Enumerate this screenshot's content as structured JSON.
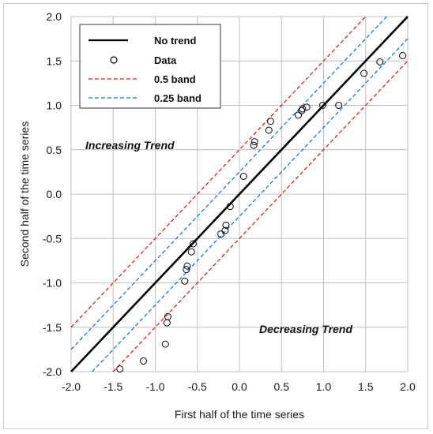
{
  "chart_data": {
    "type": "scatter",
    "xlabel": "First half of the time series",
    "ylabel": "Second half of the time series",
    "xlim": [
      -2.0,
      2.0
    ],
    "ylim": [
      -2.0,
      2.0
    ],
    "xticks": [
      "-2.0",
      "-1.5",
      "-1.0",
      "-0.5",
      "0.0",
      "0.5",
      "1.0",
      "1.5",
      "2.0"
    ],
    "yticks": [
      "2.0",
      "1.5",
      "1.0",
      "0.5",
      "0.0",
      "-0.5",
      "-1.0",
      "-1.5",
      "-2.0"
    ],
    "grid": true,
    "legend_position": "top-left",
    "legend": [
      {
        "label": "No trend",
        "style": "solid-line",
        "color": "#000000"
      },
      {
        "label": "Data",
        "style": "open-circle",
        "color": "#000000"
      },
      {
        "label": "0.5 band",
        "style": "dashed-line",
        "color": "#e0201c"
      },
      {
        "label": "0.25 band",
        "style": "dashed-line",
        "color": "#1f7bc1"
      }
    ],
    "annotations": [
      {
        "text": "Increasing Trend",
        "x": -1.27,
        "y": 0.5
      },
      {
        "text": "Decreasing Trend",
        "x": 0.53,
        "y": -1.57
      }
    ],
    "lines": [
      {
        "name": "No trend",
        "slope": 1,
        "offset": 0,
        "color": "#000000",
        "dashed": false
      },
      {
        "name": "0.5 band",
        "slope": 1,
        "offset": 0.5,
        "color": "#e0201c",
        "dashed": true
      },
      {
        "name": "0.5 band",
        "slope": 1,
        "offset": -0.5,
        "color": "#e0201c",
        "dashed": true
      },
      {
        "name": "0.25 band",
        "slope": 1,
        "offset": 0.25,
        "color": "#1f7bc1",
        "dashed": true
      },
      {
        "name": "0.25 band",
        "slope": 1,
        "offset": -0.25,
        "color": "#1f7bc1",
        "dashed": true
      }
    ],
    "series": [
      {
        "name": "Data",
        "points": [
          [
            -1.42,
            -1.97
          ],
          [
            -1.14,
            -1.88
          ],
          [
            -0.88,
            -1.69
          ],
          [
            -0.86,
            -1.45
          ],
          [
            -0.85,
            -1.38
          ],
          [
            -0.65,
            -0.98
          ],
          [
            -0.63,
            -0.85
          ],
          [
            -0.62,
            -0.81
          ],
          [
            -0.57,
            -0.65
          ],
          [
            -0.55,
            -0.56
          ],
          [
            -0.22,
            -0.45
          ],
          [
            -0.17,
            -0.41
          ],
          [
            -0.16,
            -0.35
          ],
          [
            -0.11,
            -0.14
          ],
          [
            0.05,
            0.2
          ],
          [
            0.17,
            0.55
          ],
          [
            0.18,
            0.59
          ],
          [
            0.35,
            0.72
          ],
          [
            0.37,
            0.82
          ],
          [
            0.7,
            0.89
          ],
          [
            0.74,
            0.94
          ],
          [
            0.75,
            0.96
          ],
          [
            0.8,
            0.98
          ],
          [
            0.99,
            1.0
          ],
          [
            1.18,
            1.0
          ],
          [
            1.48,
            1.36
          ],
          [
            1.67,
            1.49
          ],
          [
            1.94,
            1.56
          ]
        ]
      }
    ]
  }
}
